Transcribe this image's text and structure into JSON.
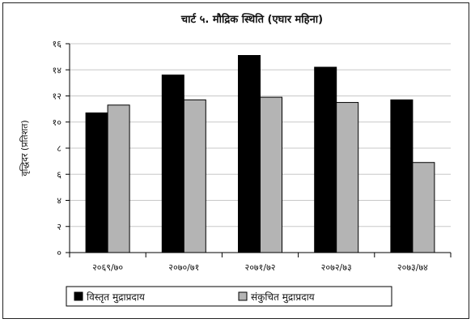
{
  "chart_data": {
    "type": "bar",
    "title": "चार्ट ५. मौद्रिक स्थिति (एघार महिना)",
    "ylabel": "वृद्धिदर (प्रतिशत)",
    "xlabel": "",
    "ylim": [
      0,
      16
    ],
    "yticks": [
      0,
      2,
      4,
      6,
      8,
      10,
      12,
      14,
      16
    ],
    "ytick_labels": [
      "०",
      "२",
      "४",
      "६",
      "८",
      "१०",
      "१२",
      "१४",
      "१६"
    ],
    "categories": [
      "२०६९/७०",
      "२०७०/७१",
      "२०७१/७२",
      "२०७२/७३",
      "२०७३/७४"
    ],
    "grid": true,
    "legend_position": "bottom",
    "series": [
      {
        "name": "विस्तृत मुद्राप्रदाय",
        "color": "#000000",
        "values": [
          10.7,
          13.6,
          15.1,
          14.2,
          11.7
        ]
      },
      {
        "name": "संकुचित मुद्राप्रदाय",
        "color": "#b4b4b4",
        "values": [
          11.3,
          11.7,
          11.9,
          11.5,
          6.9
        ]
      }
    ]
  }
}
